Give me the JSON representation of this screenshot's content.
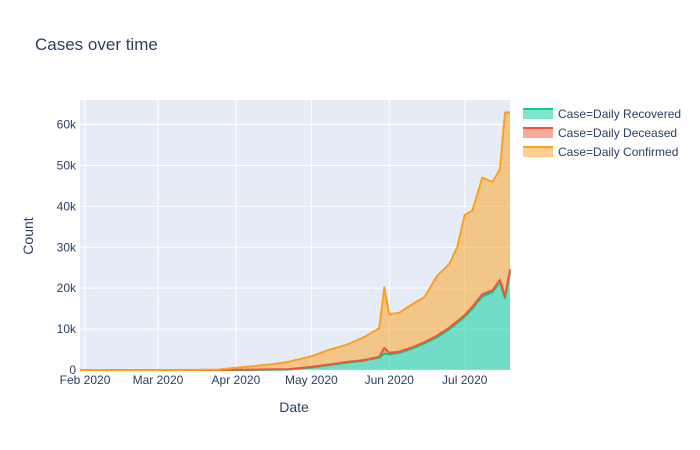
{
  "chart_data": {
    "type": "area",
    "title": "Cases over time",
    "xlabel": "Date",
    "ylabel": "Count",
    "xlim": [
      "2020-01-30",
      "2020-07-19"
    ],
    "ylim": [
      0,
      66000
    ],
    "x_ticks": [
      {
        "date": "2020-02-01",
        "label": "Feb 2020"
      },
      {
        "date": "2020-03-01",
        "label": "Mar 2020"
      },
      {
        "date": "2020-04-01",
        "label": "Apr 2020"
      },
      {
        "date": "2020-05-01",
        "label": "May 2020"
      },
      {
        "date": "2020-06-01",
        "label": "Jun 2020"
      },
      {
        "date": "2020-07-01",
        "label": "Jul 2020"
      }
    ],
    "y_ticks": [
      {
        "value": 0,
        "label": "0"
      },
      {
        "value": 10000,
        "label": "10k"
      },
      {
        "value": 20000,
        "label": "20k"
      },
      {
        "value": 30000,
        "label": "30k"
      },
      {
        "value": 40000,
        "label": "40k"
      },
      {
        "value": 50000,
        "label": "50k"
      },
      {
        "value": 60000,
        "label": "60k"
      }
    ],
    "grid": true,
    "stacked": true,
    "legend_position": "top-right",
    "x": [
      "2020-01-30",
      "2020-02-15",
      "2020-03-01",
      "2020-03-15",
      "2020-03-25",
      "2020-04-01",
      "2020-04-08",
      "2020-04-15",
      "2020-04-22",
      "2020-05-01",
      "2020-05-08",
      "2020-05-15",
      "2020-05-22",
      "2020-05-28",
      "2020-05-30",
      "2020-06-01",
      "2020-06-05",
      "2020-06-10",
      "2020-06-15",
      "2020-06-20",
      "2020-06-25",
      "2020-06-28",
      "2020-07-01",
      "2020-07-04",
      "2020-07-08",
      "2020-07-12",
      "2020-07-15",
      "2020-07-17",
      "2020-07-19"
    ],
    "series": [
      {
        "name": "Case=Daily Recovered",
        "color": "#00cc96",
        "values": [
          0,
          0,
          0,
          0,
          0,
          0,
          20,
          60,
          120,
          600,
          1200,
          1800,
          2300,
          3000,
          4000,
          3800,
          4200,
          5200,
          6500,
          8000,
          10000,
          11500,
          13000,
          15000,
          18000,
          19000,
          21500,
          17500,
          24000
        ]
      },
      {
        "name": "Case=Daily Deceased",
        "color": "#ef553b",
        "values": [
          0,
          0,
          0,
          0,
          10,
          50,
          80,
          100,
          100,
          150,
          150,
          150,
          150,
          200,
          1400,
          400,
          300,
          300,
          350,
          400,
          400,
          400,
          450,
          450,
          500,
          500,
          500,
          550,
          600
        ]
      },
      {
        "name": "Case=Daily Confirmed",
        "color": "#ff9f1c",
        "values": [
          0,
          0,
          0,
          20,
          100,
          500,
          850,
          1200,
          1800,
          2600,
          3600,
          4200,
          5600,
          7000,
          14800,
          9400,
          9500,
          10500,
          11000,
          14600,
          15600,
          18100,
          24500,
          23500,
          28500,
          26500,
          27000,
          44900,
          38400
        ]
      }
    ]
  }
}
